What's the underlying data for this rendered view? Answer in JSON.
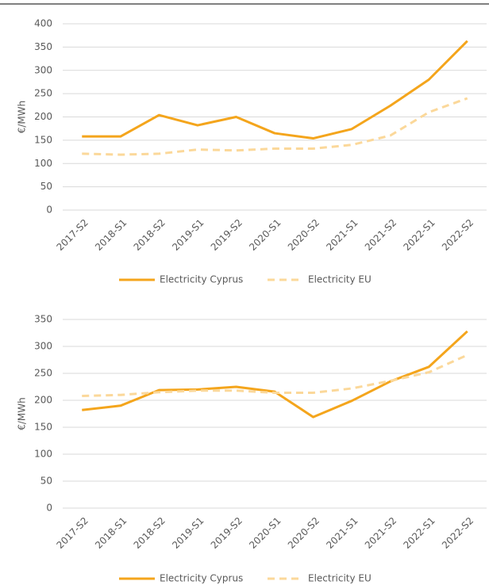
{
  "chart_data": [
    {
      "type": "line",
      "ylabel": "€/MWh",
      "categories": [
        "2017-S2",
        "2018-S1",
        "2018-S2",
        "2019-S1",
        "2019-S2",
        "2020-S1",
        "2020-S2",
        "2021-S1",
        "2021-S2",
        "2022-S1",
        "2022-S2"
      ],
      "series": [
        {
          "name": "Electricity Cyprus",
          "color": "#f4a51c",
          "dashed": false,
          "values": [
            158,
            158,
            204,
            182,
            200,
            165,
            154,
            174,
            224,
            280,
            363
          ]
        },
        {
          "name": "Electricity EU",
          "color": "#fbd89a",
          "dashed": true,
          "values": [
            121,
            119,
            121,
            130,
            128,
            132,
            132,
            140,
            160,
            210,
            240
          ]
        }
      ],
      "ylim": [
        0,
        400
      ],
      "yticks": [
        0,
        50,
        100,
        150,
        200,
        250,
        300,
        350,
        400
      ],
      "grid": true,
      "legend": "bottom"
    },
    {
      "type": "line",
      "ylabel": "€/MWh",
      "categories": [
        "2017-S2",
        "2018-S1",
        "2018-S2",
        "2019-S1",
        "2019-S2",
        "2020-S1",
        "2020-S2",
        "2021-S1",
        "2021-S2",
        "2022-S1",
        "2022-S2"
      ],
      "series": [
        {
          "name": "Electricity Cyprus",
          "color": "#f4a51c",
          "dashed": false,
          "values": [
            182,
            190,
            219,
            220,
            225,
            216,
            169,
            199,
            235,
            262,
            328
          ]
        },
        {
          "name": "Electricity EU",
          "color": "#fbd89a",
          "dashed": true,
          "values": [
            208,
            210,
            215,
            218,
            218,
            214,
            214,
            222,
            236,
            252,
            284
          ]
        }
      ],
      "ylim": [
        0,
        350
      ],
      "yticks": [
        0,
        50,
        100,
        150,
        200,
        250,
        300,
        350
      ],
      "grid": true,
      "legend": "bottom"
    }
  ]
}
